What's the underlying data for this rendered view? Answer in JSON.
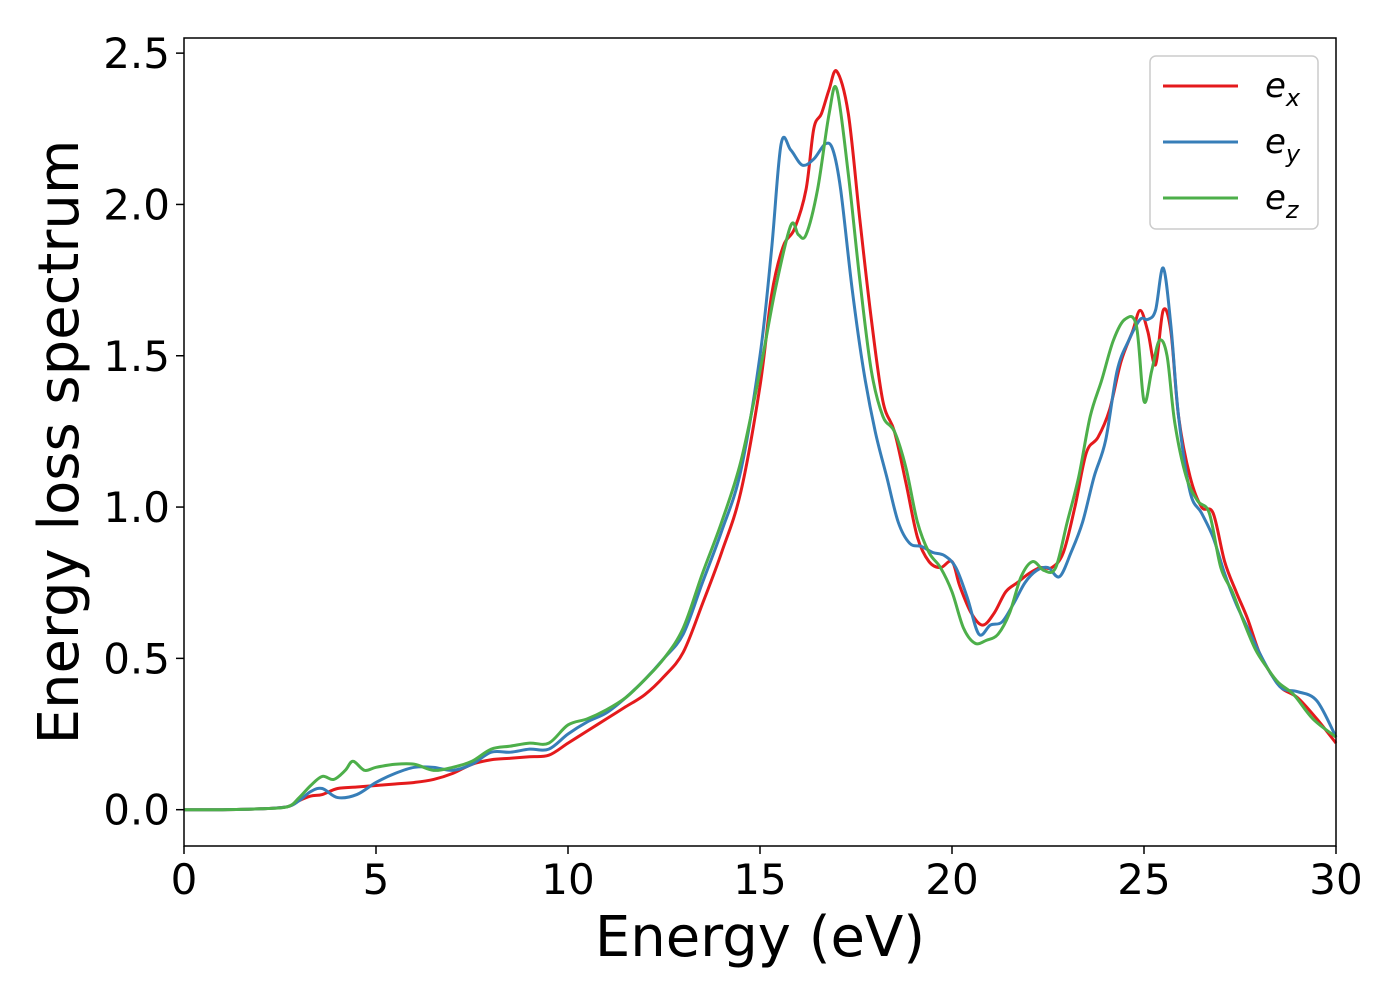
{
  "chart_data": {
    "type": "line",
    "xlabel": "Energy (eV)",
    "ylabel": "Energy loss spectrum",
    "xlim": [
      0,
      30
    ],
    "ylim": [
      -0.12,
      2.55
    ],
    "xticks": [
      0,
      5,
      10,
      15,
      20,
      25,
      30
    ],
    "xtick_labels": [
      "0",
      "5",
      "10",
      "15",
      "20",
      "25",
      "30"
    ],
    "yticks": [
      0.0,
      0.5,
      1.0,
      1.5,
      2.0,
      2.5
    ],
    "ytick_labels": [
      "0.0",
      "0.5",
      "1.0",
      "1.5",
      "2.0",
      "2.5"
    ],
    "grid": false,
    "legend_position": "top-right",
    "series": [
      {
        "name_base": "e",
        "name_sub": "x",
        "color": "#e41a1c",
        "x": [
          0,
          1,
          2,
          2.7,
          3.0,
          3.3,
          3.6,
          4.0,
          4.5,
          5.0,
          5.5,
          6.0,
          6.5,
          7.0,
          7.5,
          8.0,
          8.5,
          9.0,
          9.5,
          10.0,
          10.5,
          11.0,
          11.5,
          12.0,
          12.5,
          13.0,
          13.5,
          14.0,
          14.5,
          15.0,
          15.3,
          15.6,
          15.9,
          16.2,
          16.4,
          16.6,
          16.8,
          17.0,
          17.3,
          17.6,
          17.9,
          18.2,
          18.5,
          18.8,
          19.1,
          19.4,
          19.7,
          20.0,
          20.2,
          20.5,
          20.8,
          21.1,
          21.4,
          21.7,
          22.0,
          22.3,
          22.6,
          22.9,
          23.2,
          23.5,
          23.8,
          24.1,
          24.4,
          24.7,
          24.9,
          25.1,
          25.3,
          25.5,
          25.7,
          25.9,
          26.2,
          26.5,
          26.8,
          27.1,
          27.4,
          27.7,
          28.0,
          28.3,
          28.6,
          29.0,
          29.5,
          30.0
        ],
        "y": [
          0.0,
          0.0,
          0.003,
          0.01,
          0.03,
          0.045,
          0.05,
          0.07,
          0.075,
          0.08,
          0.085,
          0.09,
          0.1,
          0.12,
          0.15,
          0.165,
          0.17,
          0.175,
          0.18,
          0.22,
          0.26,
          0.3,
          0.34,
          0.38,
          0.44,
          0.52,
          0.68,
          0.85,
          1.05,
          1.4,
          1.7,
          1.86,
          1.92,
          2.05,
          2.25,
          2.3,
          2.38,
          2.44,
          2.3,
          1.95,
          1.62,
          1.35,
          1.25,
          1.08,
          0.9,
          0.82,
          0.8,
          0.82,
          0.74,
          0.65,
          0.61,
          0.65,
          0.72,
          0.75,
          0.78,
          0.8,
          0.8,
          0.85,
          1.0,
          1.18,
          1.23,
          1.32,
          1.48,
          1.58,
          1.65,
          1.58,
          1.47,
          1.65,
          1.58,
          1.3,
          1.1,
          1.0,
          0.98,
          0.82,
          0.72,
          0.63,
          0.52,
          0.45,
          0.4,
          0.37,
          0.3,
          0.22
        ]
      },
      {
        "name_base": "e",
        "name_sub": "y",
        "color": "#377eb8",
        "x": [
          0,
          1,
          2,
          2.7,
          3.0,
          3.3,
          3.6,
          4.0,
          4.5,
          5.0,
          5.5,
          6.0,
          6.5,
          7.0,
          7.5,
          8.0,
          8.5,
          9.0,
          9.5,
          10.0,
          10.5,
          11.0,
          11.5,
          12.0,
          12.5,
          13.0,
          13.5,
          14.0,
          14.5,
          15.0,
          15.3,
          15.55,
          15.8,
          16.1,
          16.4,
          16.7,
          16.9,
          17.1,
          17.4,
          17.7,
          18.0,
          18.3,
          18.6,
          18.9,
          19.2,
          19.5,
          19.8,
          20.1,
          20.4,
          20.7,
          21.0,
          21.3,
          21.6,
          21.9,
          22.2,
          22.5,
          22.8,
          23.1,
          23.4,
          23.7,
          24.0,
          24.3,
          24.6,
          24.9,
          25.1,
          25.3,
          25.5,
          25.7,
          25.9,
          26.2,
          26.5,
          26.8,
          27.1,
          27.4,
          27.7,
          28.0,
          28.3,
          28.6,
          29.0,
          29.5,
          30.0
        ],
        "y": [
          0.0,
          0.0,
          0.003,
          0.01,
          0.03,
          0.06,
          0.07,
          0.04,
          0.05,
          0.09,
          0.12,
          0.14,
          0.14,
          0.13,
          0.15,
          0.19,
          0.19,
          0.2,
          0.2,
          0.25,
          0.29,
          0.32,
          0.37,
          0.43,
          0.5,
          0.58,
          0.75,
          0.92,
          1.12,
          1.5,
          1.85,
          2.2,
          2.18,
          2.13,
          2.15,
          2.2,
          2.18,
          2.05,
          1.72,
          1.45,
          1.25,
          1.1,
          0.95,
          0.88,
          0.87,
          0.85,
          0.84,
          0.8,
          0.7,
          0.58,
          0.61,
          0.62,
          0.68,
          0.75,
          0.79,
          0.8,
          0.77,
          0.85,
          0.95,
          1.1,
          1.22,
          1.45,
          1.55,
          1.62,
          1.62,
          1.65,
          1.79,
          1.6,
          1.3,
          1.05,
          0.98,
          0.9,
          0.78,
          0.68,
          0.6,
          0.52,
          0.45,
          0.4,
          0.39,
          0.36,
          0.24
        ]
      },
      {
        "name_base": "e",
        "name_sub": "z",
        "color": "#4daf4a",
        "x": [
          0,
          1,
          2,
          2.7,
          3.0,
          3.3,
          3.6,
          3.9,
          4.2,
          4.4,
          4.7,
          5.0,
          5.5,
          6.0,
          6.5,
          7.0,
          7.5,
          8.0,
          8.5,
          9.0,
          9.5,
          10.0,
          10.5,
          11.0,
          11.5,
          12.0,
          12.5,
          13.0,
          13.5,
          14.0,
          14.5,
          15.0,
          15.4,
          15.8,
          16.0,
          16.2,
          16.5,
          16.8,
          17.0,
          17.3,
          17.6,
          17.9,
          18.2,
          18.5,
          18.8,
          19.1,
          19.4,
          19.7,
          20.0,
          20.3,
          20.6,
          20.9,
          21.2,
          21.5,
          21.8,
          22.1,
          22.4,
          22.7,
          23.0,
          23.3,
          23.6,
          23.9,
          24.2,
          24.5,
          24.8,
          25.0,
          25.2,
          25.4,
          25.6,
          25.8,
          26.1,
          26.4,
          26.7,
          27.0,
          27.3,
          27.6,
          27.9,
          28.2,
          28.5,
          28.9,
          29.4,
          30.0
        ],
        "y": [
          0.0,
          0.0,
          0.003,
          0.01,
          0.04,
          0.08,
          0.11,
          0.1,
          0.13,
          0.16,
          0.13,
          0.14,
          0.15,
          0.15,
          0.13,
          0.14,
          0.16,
          0.2,
          0.21,
          0.22,
          0.22,
          0.28,
          0.3,
          0.33,
          0.37,
          0.43,
          0.5,
          0.6,
          0.78,
          0.95,
          1.15,
          1.45,
          1.72,
          1.93,
          1.9,
          1.9,
          2.05,
          2.3,
          2.38,
          2.1,
          1.75,
          1.45,
          1.3,
          1.25,
          1.13,
          0.95,
          0.85,
          0.8,
          0.72,
          0.6,
          0.55,
          0.56,
          0.58,
          0.65,
          0.77,
          0.82,
          0.79,
          0.8,
          0.95,
          1.1,
          1.3,
          1.42,
          1.55,
          1.62,
          1.6,
          1.35,
          1.45,
          1.55,
          1.5,
          1.28,
          1.1,
          1.02,
          0.98,
          0.8,
          0.72,
          0.62,
          0.53,
          0.47,
          0.42,
          0.38,
          0.3,
          0.24
        ]
      }
    ]
  }
}
